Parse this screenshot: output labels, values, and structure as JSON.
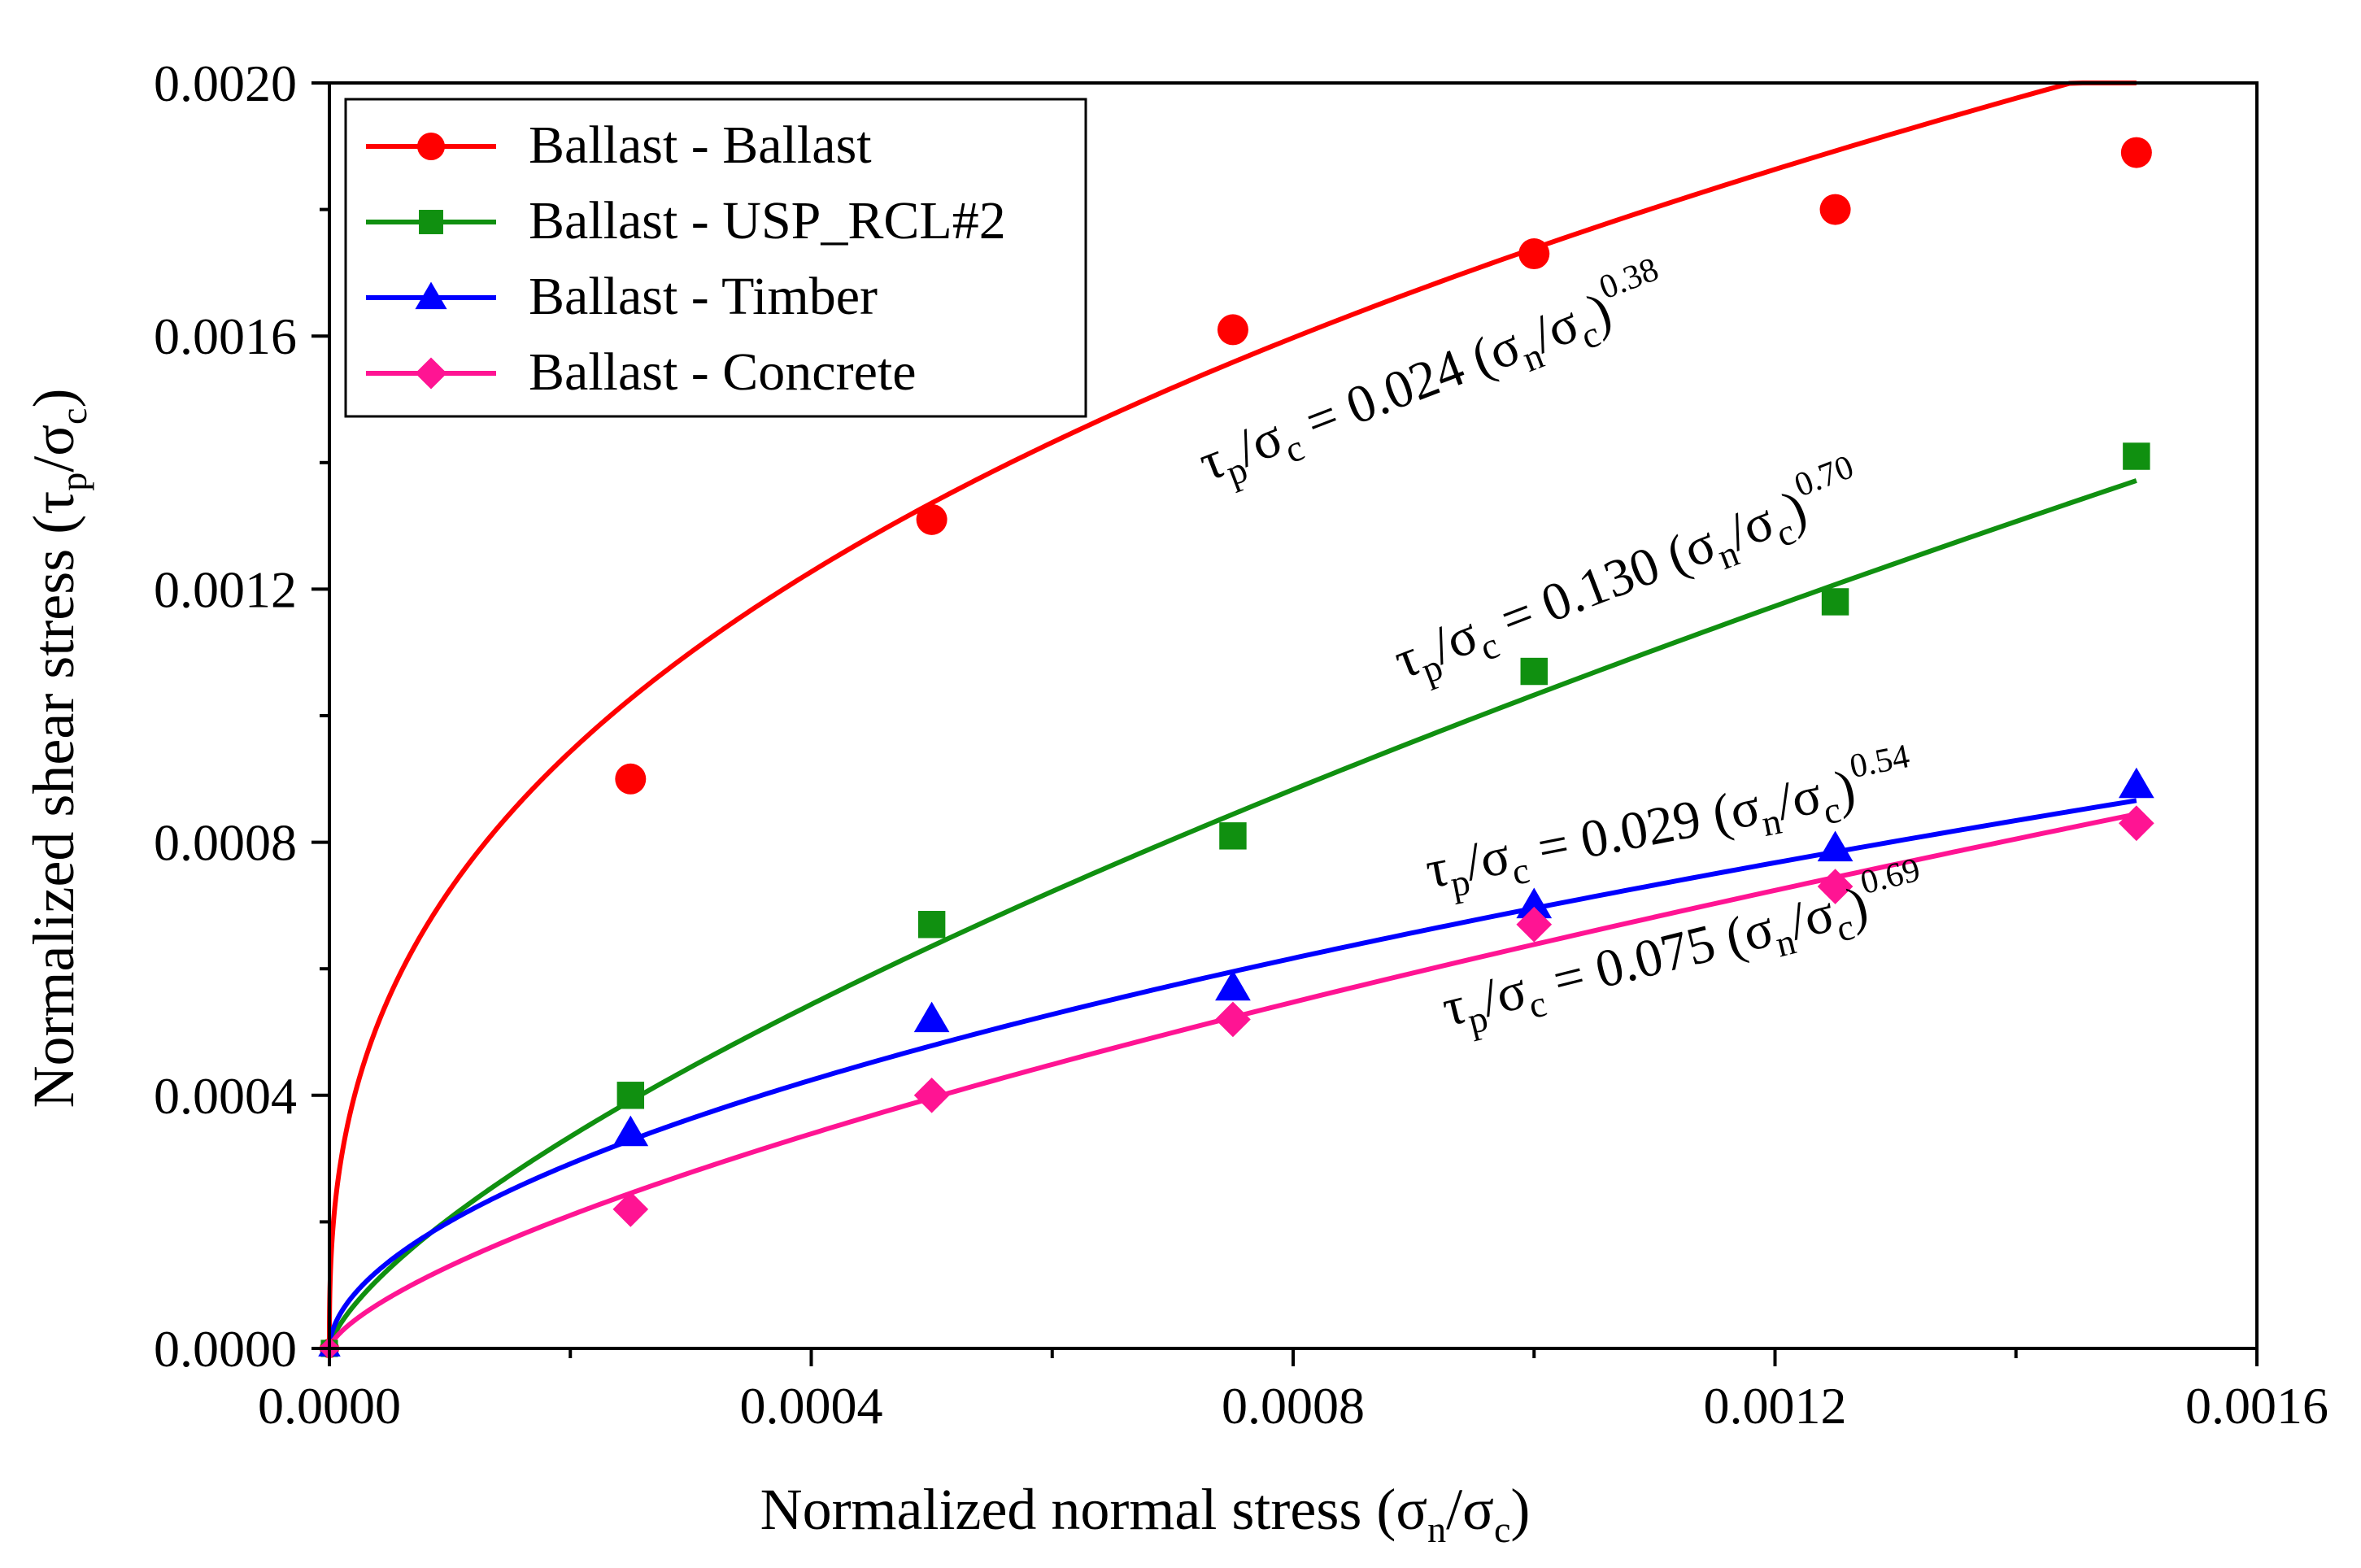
{
  "chart_data": {
    "type": "scatter",
    "xlabel": "Normalized normal stress (σn/σc)",
    "ylabel": "Normalized shear stress (τp/σc)",
    "xlim": [
      0,
      0.0016
    ],
    "ylim": [
      0,
      0.002
    ],
    "x_ticks": [
      "0.0000",
      "0.0004",
      "0.0008",
      "0.0012",
      "0.0016"
    ],
    "y_ticks": [
      "0.0000",
      "0.0004",
      "0.0008",
      "0.0012",
      "0.0016",
      "0.0020"
    ],
    "legend_position": "top-left",
    "series": [
      {
        "name": "Ballast - Ballast",
        "color": "#ff0000",
        "marker": "circle",
        "x": [
          0.00025,
          0.0005,
          0.00075,
          0.001,
          0.00125,
          0.0015
        ],
        "y": [
          0.0009,
          0.00131,
          0.00161,
          0.00173,
          0.0018,
          0.00189
        ],
        "fit": {
          "coefficient": 0.024,
          "exponent": 0.38,
          "equation": "τp/σc = 0.024 (σn/σc)^0.38"
        }
      },
      {
        "name": "Ballast - USP_RCL#2",
        "color": "#109010",
        "marker": "square",
        "x": [
          0.00025,
          0.0005,
          0.00075,
          0.001,
          0.00125,
          0.0015
        ],
        "y": [
          0.0004,
          0.00067,
          0.00081,
          0.00107,
          0.00118,
          0.00141
        ],
        "fit": {
          "coefficient": 0.13,
          "exponent": 0.7,
          "equation": "τp/σc = 0.130 (σn/σc)^0.70"
        }
      },
      {
        "name": "Ballast - Timber",
        "color": "#0000ff",
        "marker": "triangle",
        "x": [
          0.00025,
          0.0005,
          0.00075,
          0.001,
          0.00125,
          0.0015
        ],
        "y": [
          0.00034,
          0.00052,
          0.00057,
          0.0007,
          0.00079,
          0.00089
        ],
        "fit": {
          "coefficient": 0.029,
          "exponent": 0.54,
          "equation": "τp/σc = 0.029 (σn/σc)^0.54"
        }
      },
      {
        "name": "Ballast - Concrete",
        "color": "#ff1493",
        "marker": "diamond",
        "x": [
          0.00025,
          0.0005,
          0.00075,
          0.001,
          0.00125,
          0.0015
        ],
        "y": [
          0.00022,
          0.0004,
          0.00052,
          0.00067,
          0.00073,
          0.00083
        ],
        "fit": {
          "coefficient": 0.075,
          "exponent": 0.69,
          "equation": "τp/σc = 0.075 (σn/σc)^0.69"
        }
      }
    ],
    "equations": [
      {
        "tau": "τ",
        "p": "p",
        "sigma_c": "σ",
        "c": "c",
        "eq": "= 0.024 (σ",
        "n": "n",
        "slash": "/σ",
        "c2": "c",
        "close": ")",
        "exp": "0.38"
      },
      {
        "tau": "τ",
        "p": "p",
        "sigma_c": "σ",
        "c": "c",
        "eq": "= 0.130 (σ",
        "n": "n",
        "slash": "/σ",
        "c2": "c",
        "close": ")",
        "exp": "0.70"
      },
      {
        "tau": "τ",
        "p": "p",
        "sigma_c": "σ",
        "c": "c",
        "eq": "= 0.029 (σ",
        "n": "n",
        "slash": "/σ",
        "c2": "c",
        "close": ")",
        "exp": "0.54"
      },
      {
        "tau": "τ",
        "p": "p",
        "sigma_c": "σ",
        "c": "c",
        "eq": "= 0.075 (σ",
        "n": "n",
        "slash": "/σ",
        "c2": "c",
        "close": ")",
        "exp": "0.69"
      }
    ],
    "axis_titles": {
      "x": {
        "pre": "Normalized normal stress (σ",
        "sub": "n",
        "mid": "/σ",
        "sub2": "c",
        "post": ")"
      },
      "y": {
        "pre": "Normalized shear stress (τ",
        "sub": "p",
        "mid": "/σ",
        "sub2": "c",
        "post": ")"
      }
    }
  }
}
